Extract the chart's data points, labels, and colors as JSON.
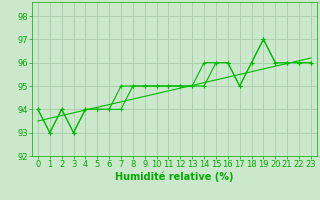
{
  "title": "",
  "xlabel": "Humidité relative (%)",
  "ylabel": "",
  "background_color": "#cce8cc",
  "grid_color": "#aaccaa",
  "line_color": "#00bb00",
  "xlim": [
    -0.5,
    23.5
  ],
  "ylim": [
    92,
    98.6
  ],
  "yticks": [
    92,
    93,
    94,
    95,
    96,
    97,
    98
  ],
  "xticks": [
    0,
    1,
    2,
    3,
    4,
    5,
    6,
    7,
    8,
    9,
    10,
    11,
    12,
    13,
    14,
    15,
    16,
    17,
    18,
    19,
    20,
    21,
    22,
    23
  ],
  "series1": [
    94,
    93,
    94,
    93,
    94,
    94,
    94,
    95,
    95,
    95,
    95,
    95,
    95,
    95,
    96,
    96,
    96,
    95,
    96,
    97,
    96,
    96,
    96,
    96
  ],
  "series2": [
    94,
    93,
    94,
    93,
    94,
    94,
    94,
    94,
    95,
    95,
    95,
    95,
    95,
    95,
    95,
    96,
    96,
    95,
    96,
    97,
    96,
    96,
    96,
    96
  ],
  "trend_x": [
    0,
    23
  ],
  "trend_y": [
    93.5,
    96.2
  ],
  "font_color": "#00aa00",
  "tick_fontsize": 6,
  "xlabel_fontsize": 7
}
